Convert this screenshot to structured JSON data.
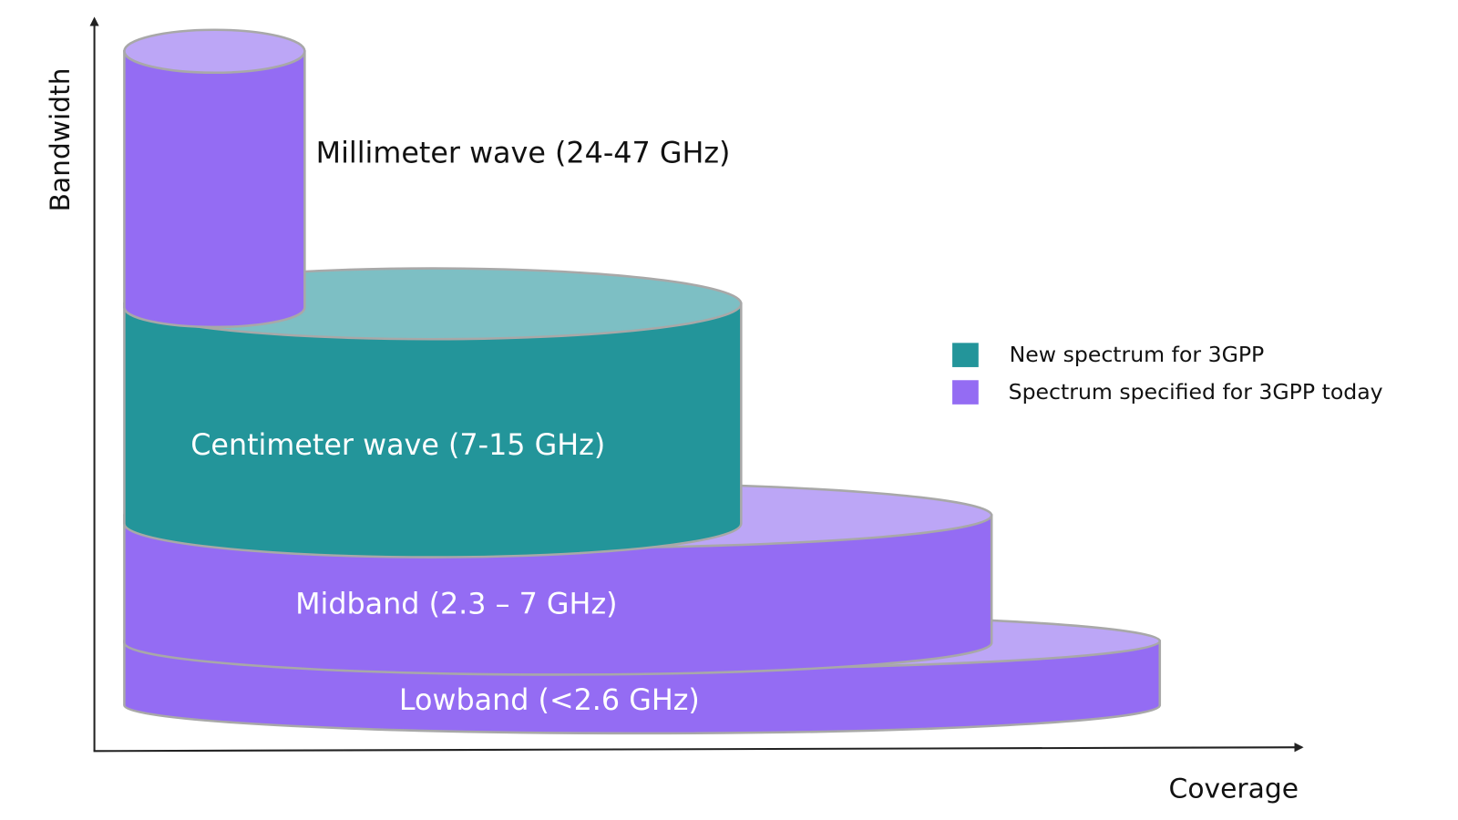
{
  "axes": {
    "y_label": "Bandwidth",
    "x_label": "Coverage"
  },
  "bands": [
    {
      "label": "Millimeter wave (24-47 GHz)"
    },
    {
      "label": "Centimeter wave (7-15 GHz)"
    },
    {
      "label": "Midband (2.3 – 7 GHz)"
    },
    {
      "label": "Lowband (<2.6 GHz)"
    }
  ],
  "legend": [
    {
      "label": "New spectrum for 3GPP"
    },
    {
      "label": "Spectrum specified for 3GPP today"
    }
  ]
}
